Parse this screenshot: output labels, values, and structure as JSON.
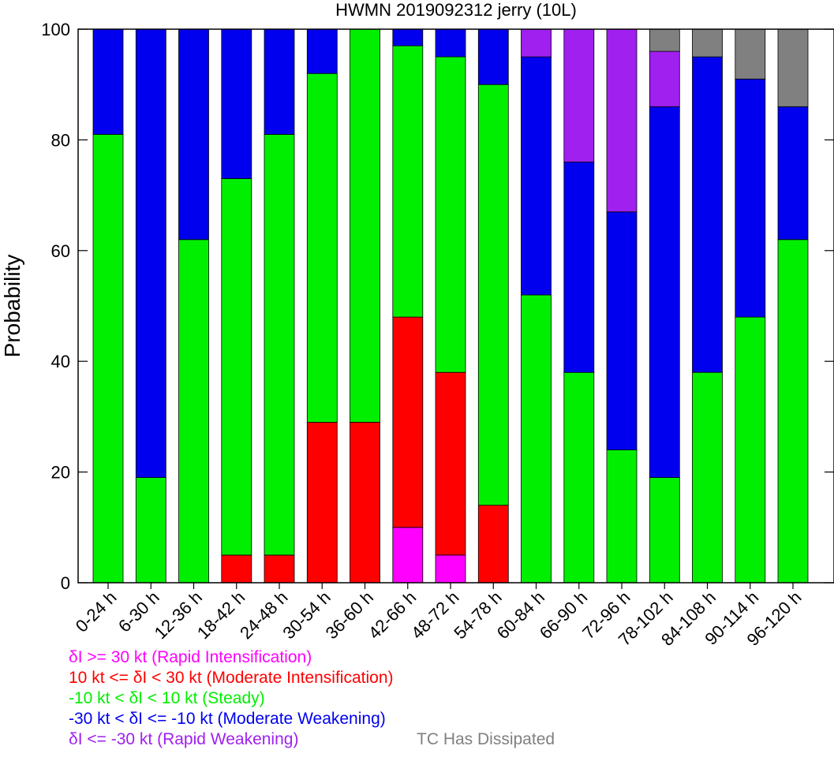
{
  "chart_data": {
    "type": "bar",
    "stacked": true,
    "title": "HWMN 2019092312 jerry (10L)",
    "ylabel": "Probability",
    "xlabel": "",
    "ylim": [
      0,
      100
    ],
    "yticks": [
      "0",
      "20",
      "40",
      "60",
      "80",
      "100"
    ],
    "grid": false,
    "categories": [
      "0-24 h",
      "6-30 h",
      "12-36 h",
      "18-42 h",
      "24-48 h",
      "30-54 h",
      "36-60 h",
      "42-66 h",
      "48-72 h",
      "54-78 h",
      "60-84 h",
      "66-90 h",
      "72-96 h",
      "78-102 h",
      "84-108 h",
      "90-114 h",
      "96-120 h"
    ],
    "series": [
      {
        "name": "δI >= 30 kt (Rapid Intensification)",
        "color": "#ff00ff",
        "values": [
          0,
          0,
          0,
          0,
          0,
          0,
          0,
          10,
          5,
          0,
          0,
          0,
          0,
          0,
          0,
          0,
          0
        ]
      },
      {
        "name": "10 kt <= δI < 30 kt (Moderate Intensification)",
        "color": "#ff0000",
        "values": [
          0,
          0,
          0,
          5,
          5,
          29,
          29,
          38,
          33,
          14,
          0,
          0,
          0,
          0,
          0,
          0,
          0
        ]
      },
      {
        "name": "-10 kt < δI < 10 kt (Steady)",
        "color": "#00ee00",
        "values": [
          81,
          19,
          62,
          68,
          76,
          63,
          71,
          49,
          57,
          76,
          52,
          38,
          24,
          19,
          38,
          48,
          62
        ]
      },
      {
        "name": "-30 kt < δI <= -10 kt (Moderate Weakening)",
        "color": "#0000ee",
        "values": [
          19,
          81,
          38,
          27,
          19,
          8,
          0,
          3,
          5,
          10,
          43,
          38,
          43,
          67,
          57,
          43,
          24
        ]
      },
      {
        "name": "δI <= -30 kt (Rapid Weakening)",
        "color": "#a020f0",
        "values": [
          0,
          0,
          0,
          0,
          0,
          0,
          0,
          0,
          0,
          0,
          5,
          24,
          33,
          10,
          0,
          0,
          0
        ]
      },
      {
        "name": "TC Has Dissipated",
        "color": "#808080",
        "values": [
          0,
          0,
          0,
          0,
          0,
          0,
          0,
          0,
          0,
          0,
          0,
          0,
          0,
          4,
          5,
          9,
          14
        ]
      }
    ]
  }
}
